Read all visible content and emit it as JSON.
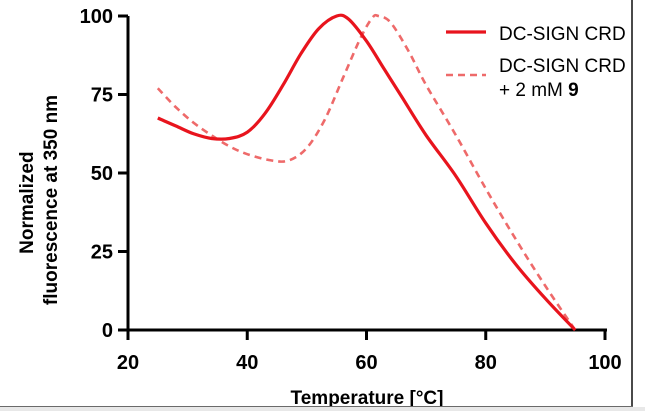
{
  "chart_data": {
    "type": "line",
    "xlabel": "Temperature [°C]",
    "ylabel_lines": [
      "Normalized",
      "fluorescence at 350 nm"
    ],
    "xlim": [
      20,
      100
    ],
    "ylim": [
      0,
      100
    ],
    "xticks": [
      20,
      40,
      60,
      80,
      100
    ],
    "yticks": [
      0,
      25,
      50,
      75,
      100
    ],
    "grid": false,
    "legend_position": "top-right",
    "series": [
      {
        "name": "DC-SIGN CRD",
        "color": "#e8141d",
        "style": "solid",
        "points": [
          [
            25,
            67.5
          ],
          [
            28,
            65
          ],
          [
            31,
            62.5
          ],
          [
            34,
            61
          ],
          [
            37,
            61
          ],
          [
            40,
            63
          ],
          [
            43,
            69
          ],
          [
            46,
            78
          ],
          [
            49,
            88
          ],
          [
            52,
            96
          ],
          [
            55,
            100
          ],
          [
            57,
            99
          ],
          [
            60,
            92
          ],
          [
            63,
            83
          ],
          [
            66,
            74
          ],
          [
            70,
            62
          ],
          [
            75,
            49
          ],
          [
            80,
            34
          ],
          [
            85,
            21
          ],
          [
            90,
            10
          ],
          [
            95,
            0
          ]
        ]
      },
      {
        "name_parts": [
          {
            "text": "DC-SIGN CRD",
            "bold": false,
            "newline": false
          },
          {
            "text": "+ 2 mM ",
            "bold": false,
            "newline": true
          },
          {
            "text": "9",
            "bold": true,
            "newline": false
          }
        ],
        "color": "#ee6a6a",
        "style": "dashed",
        "points": [
          [
            25,
            77
          ],
          [
            28,
            71
          ],
          [
            31,
            66
          ],
          [
            34,
            62
          ],
          [
            37,
            58.5
          ],
          [
            40,
            56
          ],
          [
            44,
            54
          ],
          [
            47,
            54
          ],
          [
            50,
            58
          ],
          [
            53,
            67
          ],
          [
            56,
            80
          ],
          [
            59,
            93
          ],
          [
            61,
            99.5
          ],
          [
            62,
            100
          ],
          [
            64,
            98
          ],
          [
            67,
            89
          ],
          [
            70,
            78
          ],
          [
            75,
            62
          ],
          [
            80,
            45
          ],
          [
            85,
            29
          ],
          [
            90,
            14
          ],
          [
            95,
            0
          ]
        ]
      }
    ]
  }
}
